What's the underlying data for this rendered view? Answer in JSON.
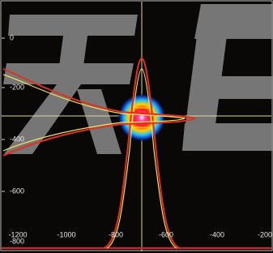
{
  "y_labels": [
    "0",
    "-200",
    "-400",
    "-600",
    "-800"
  ],
  "x_labels": [
    "-1200",
    "-1000",
    "-800",
    "-600",
    "-400",
    "-200"
  ]
}
